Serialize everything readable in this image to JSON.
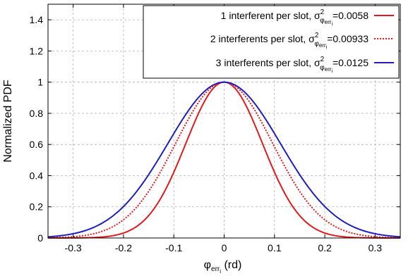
{
  "chart_data": {
    "type": "line",
    "title": "",
    "xlabel": {
      "symbol": "φ",
      "sub": "err",
      "subsub": "i",
      "unit": " (rd)"
    },
    "ylabel": "Normalized PDF",
    "xlim": [
      -0.35,
      0.35
    ],
    "ylim": [
      0,
      1.5
    ],
    "xticks": [
      -0.3,
      -0.2,
      -0.1,
      0,
      0.1,
      0.2,
      0.3
    ],
    "xtick_labels": [
      "-0.3",
      "-0.2",
      "-0.1",
      "0",
      "0.1",
      "0.2",
      "0.3"
    ],
    "yticks": [
      0,
      0.2,
      0.4,
      0.6,
      0.8,
      1,
      1.2,
      1.4
    ],
    "ytick_labels": [
      "0",
      "0.2",
      "0.4",
      "0.6",
      "0.8",
      "1",
      "1.2",
      "1.4"
    ],
    "grid": true,
    "legend_position": "top-right",
    "series": [
      {
        "name_prefix": "1 interferent per slot, σ",
        "name_sup": "2",
        "name_sub": "φ",
        "name_subsub": "err",
        "name_subsubsub": "i",
        "name_suffix": "=0.0058",
        "variance": 0.0058,
        "color": "#e31a1c",
        "style": "solid"
      },
      {
        "name_prefix": "2 interferents per slot, σ",
        "name_sup": "2",
        "name_sub": "φ",
        "name_subsub": "err",
        "name_subsubsub": "i",
        "name_suffix": "=0.00933",
        "variance": 0.00933,
        "color": "#e31a1c",
        "style": "dotted"
      },
      {
        "name_prefix": "3 interferents per slot, σ",
        "name_sup": "2",
        "name_sub": "φ",
        "name_subsub": "err",
        "name_subsubsub": "i",
        "name_suffix": "=0.0125",
        "variance": 0.0125,
        "color": "#1f1fbf",
        "style": "solid"
      }
    ]
  }
}
